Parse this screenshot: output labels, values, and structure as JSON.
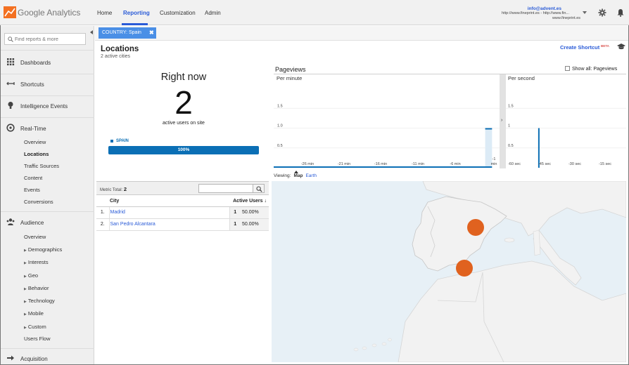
{
  "app": {
    "name": "Google Analytics"
  },
  "topnav": {
    "items": [
      "Home",
      "Reporting",
      "Customization",
      "Admin"
    ],
    "active": "Reporting"
  },
  "account": {
    "email": "info@advent.es",
    "property": "http://www.fineprint.es - http://www.fin...",
    "view": "www.fineprint.es"
  },
  "sidebar": {
    "search_placeholder": "Find reports & more",
    "sections": [
      {
        "label": "Dashboards",
        "icon": "grid-icon"
      },
      {
        "label": "Shortcuts",
        "icon": "shortcut-arrows-icon"
      },
      {
        "label": "Intelligence Events",
        "icon": "lightbulb-icon"
      },
      {
        "label": "Real-Time",
        "icon": "clock-icon"
      },
      {
        "label": "Audience",
        "icon": "people-icon"
      },
      {
        "label": "Acquisition",
        "icon": "acquisition-icon"
      }
    ],
    "realtime_items": [
      "Overview",
      "Locations",
      "Traffic Sources",
      "Content",
      "Events",
      "Conversions"
    ],
    "realtime_active": "Locations",
    "audience_items": [
      "Overview",
      "Demographics",
      "Interests",
      "Geo",
      "Behavior",
      "Technology",
      "Mobile",
      "Custom",
      "Users Flow"
    ]
  },
  "filter": {
    "label": "COUNTRY: Spain",
    "close": "✖"
  },
  "page": {
    "title": "Locations",
    "subtitle": "2 active cities",
    "shortcut": "Create Shortcut",
    "beta": "BETA"
  },
  "right_now": {
    "title": "Right now",
    "count": "2",
    "subtitle": "active users on site",
    "country": "SPAIN",
    "percent": "100%",
    "fraction": 1.0
  },
  "pageviews": {
    "title": "Pageviews",
    "show_all": "Show all: Pageviews",
    "per_minute": {
      "label": "Per minute",
      "ticks": [
        "-26 min",
        "-21 min",
        "-16 min",
        "-11 min",
        "-6 min",
        "-1 min"
      ],
      "yticks": [
        "1.5",
        "1.0",
        "0.5"
      ],
      "values": [
        0,
        0,
        0,
        0,
        0,
        0,
        0,
        0,
        0,
        0,
        0,
        0,
        0,
        0,
        0,
        0,
        0,
        0,
        0,
        0,
        0,
        0,
        0,
        0,
        0,
        0,
        0,
        0,
        1,
        0
      ]
    },
    "per_second": {
      "label": "Per second",
      "ticks": [
        "-60 sec",
        "-45 sec",
        "-30 sec",
        "-15 sec"
      ],
      "yticks": [
        "1.5",
        "1",
        "0.5"
      ],
      "spike_at": -45,
      "value": 1
    }
  },
  "map": {
    "viewing": "Viewing:",
    "tab_map": "Map",
    "tab_earth": "Earth"
  },
  "table": {
    "metric_label": "Metric Total:",
    "metric_total": "2",
    "headers": {
      "city": "City",
      "active_users": "Active Users"
    },
    "rows": [
      {
        "rank": "1.",
        "city": "Madrid",
        "users": "1",
        "pct": "50.00%"
      },
      {
        "rank": "2.",
        "city": "San Pedro Alcantara",
        "users": "1",
        "pct": "50.00%"
      }
    ]
  },
  "colors": {
    "accent": "#2a5bd7",
    "bar": "#0b6fb5",
    "marker": "#e0621f",
    "filter_chip": "#4a8fe6"
  }
}
